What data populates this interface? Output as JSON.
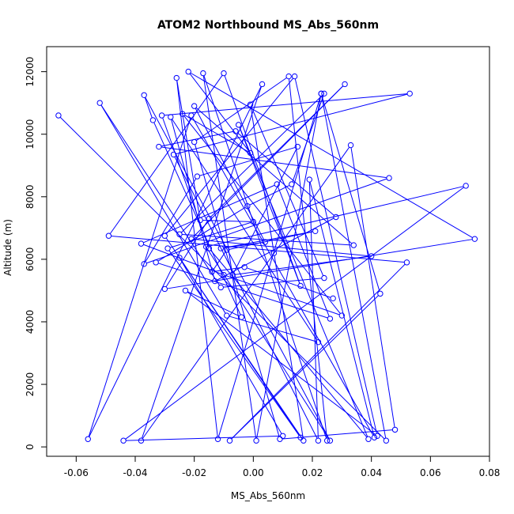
{
  "chart_data": {
    "type": "line",
    "title": "ATOM2 Northbound MS_Abs_560nm",
    "xlabel": "MS_Abs_560nm",
    "ylabel": "Altitude (m)",
    "xlim": [
      -0.07,
      0.08
    ],
    "ylim": [
      -300,
      12800
    ],
    "x_ticks": [
      -0.06,
      -0.04,
      -0.02,
      0.0,
      0.02,
      0.04,
      0.06,
      0.08
    ],
    "x_tick_labels": [
      "-0.06",
      "-0.04",
      "-0.02",
      "0.00",
      "0.02",
      "0.04",
      "0.06",
      "0.08"
    ],
    "y_ticks": [
      0,
      2000,
      4000,
      6000,
      8000,
      10000,
      12000
    ],
    "y_tick_labels": [
      "0",
      "2000",
      "4000",
      "6000",
      "8000",
      "10000",
      "12000"
    ],
    "grid": false,
    "marker": "open-circle",
    "series": [
      {
        "color": "#0000ff",
        "x": [
          -0.066,
          0.045,
          0.023,
          0.001,
          -0.017,
          0.025,
          0.012,
          -0.02,
          0.009,
          0.048,
          0.033,
          -0.038,
          0.003,
          -0.056,
          -0.021,
          0.041,
          0.019,
          0.022,
          -0.027,
          0.053,
          -0.031,
          -0.015,
          0.039,
          -0.005,
          0.016,
          -0.01,
          -0.049,
          0.052,
          -0.008,
          0.043,
          0.023,
          -0.012,
          -0.026,
          -0.018,
          0.0,
          -0.029,
          0.016,
          -0.025,
          0.01,
          -0.044,
          0.072,
          -0.016,
          0.026,
          -0.037,
          -0.034,
          -0.004,
          -0.023,
          0.042,
          0.014,
          -0.03,
          0.017,
          0.007,
          -0.001,
          0.024,
          -0.011,
          -0.052,
          -0.009,
          0.022,
          -0.028,
          -0.013,
          0.028,
          -0.006,
          -0.032,
          0.046,
          -0.037,
          -0.019,
          0.015,
          -0.007,
          0.04,
          -0.021,
          0.031,
          -0.015,
          -0.03,
          0.075,
          -0.022,
          -0.001,
          -0.024,
          0.03,
          -0.01,
          -0.038,
          0.008,
          0.026,
          -0.033,
          -0.002,
          0.013,
          0.024,
          -0.025,
          0.034,
          -0.02,
          0.004,
          -0.011,
          0.021,
          -0.009,
          -0.014,
          -0.003,
          0.027
        ],
        "y": [
          10600,
          200,
          11300,
          200,
          11950,
          200,
          11850,
          9750,
          250,
          550,
          9650,
          200,
          11600,
          250,
          10600,
          300,
          8550,
          200,
          9350,
          11300,
          10600,
          6350,
          250,
          10300,
          5150,
          11950,
          6750,
          5900,
          200,
          4900,
          11300,
          250,
          11800,
          7250,
          7200,
          6350,
          300,
          6050,
          350,
          200,
          8350,
          6400,
          200,
          11250,
          10450,
          4150,
          5000,
          350,
          11850,
          6750,
          200,
          6200,
          10950,
          5400,
          5100,
          11000,
          4200,
          3350,
          10550,
          5300,
          7350,
          10100,
          9600,
          8600,
          5850,
          8650,
          9600,
          5500,
          6100,
          6650,
          11600,
          7300,
          5050,
          6650,
          12000,
          9400,
          10650,
          4200,
          5500,
          6500,
          8400,
          4100,
          5900,
          7700,
          8400,
          11300,
          6800,
          6450,
          10900,
          6550,
          6350,
          6900,
          6300,
          5600,
          5750,
          4750
        ]
      }
    ]
  }
}
